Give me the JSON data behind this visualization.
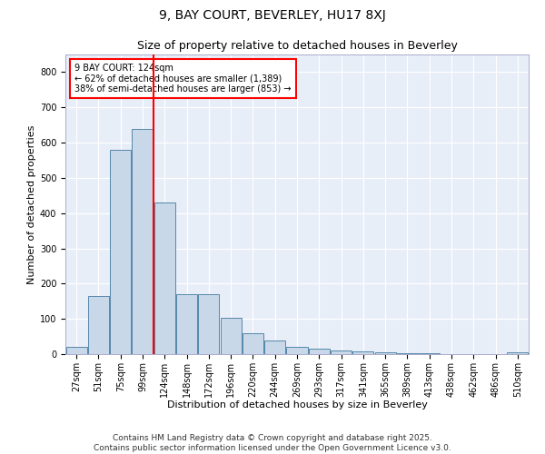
{
  "title": "9, BAY COURT, BEVERLEY, HU17 8XJ",
  "subtitle": "Size of property relative to detached houses in Beverley",
  "xlabel": "Distribution of detached houses by size in Beverley",
  "ylabel": "Number of detached properties",
  "bar_color": "#c8d8e8",
  "bar_edge_color": "#5588aa",
  "background_color": "#e8eef8",
  "grid_color": "#ffffff",
  "categories": [
    "27sqm",
    "51sqm",
    "75sqm",
    "99sqm",
    "124sqm",
    "148sqm",
    "172sqm",
    "196sqm",
    "220sqm",
    "244sqm",
    "269sqm",
    "293sqm",
    "317sqm",
    "341sqm",
    "365sqm",
    "389sqm",
    "413sqm",
    "438sqm",
    "462sqm",
    "486sqm",
    "510sqm"
  ],
  "values": [
    20,
    165,
    580,
    640,
    430,
    170,
    170,
    103,
    58,
    38,
    20,
    15,
    10,
    8,
    5,
    3,
    2,
    1,
    0,
    0,
    5
  ],
  "annotation_line1": "9 BAY COURT: 124sqm",
  "annotation_line2": "← 62% of detached houses are smaller (1,389)",
  "annotation_line3": "38% of semi-detached houses are larger (853) →",
  "vline_index": 4,
  "ylim": [
    0,
    850
  ],
  "yticks": [
    0,
    100,
    200,
    300,
    400,
    500,
    600,
    700,
    800
  ],
  "footer1": "Contains HM Land Registry data © Crown copyright and database right 2025.",
  "footer2": "Contains public sector information licensed under the Open Government Licence v3.0.",
  "title_fontsize": 10,
  "subtitle_fontsize": 9,
  "axis_label_fontsize": 8,
  "tick_fontsize": 7,
  "annotation_fontsize": 7,
  "footer_fontsize": 6.5
}
